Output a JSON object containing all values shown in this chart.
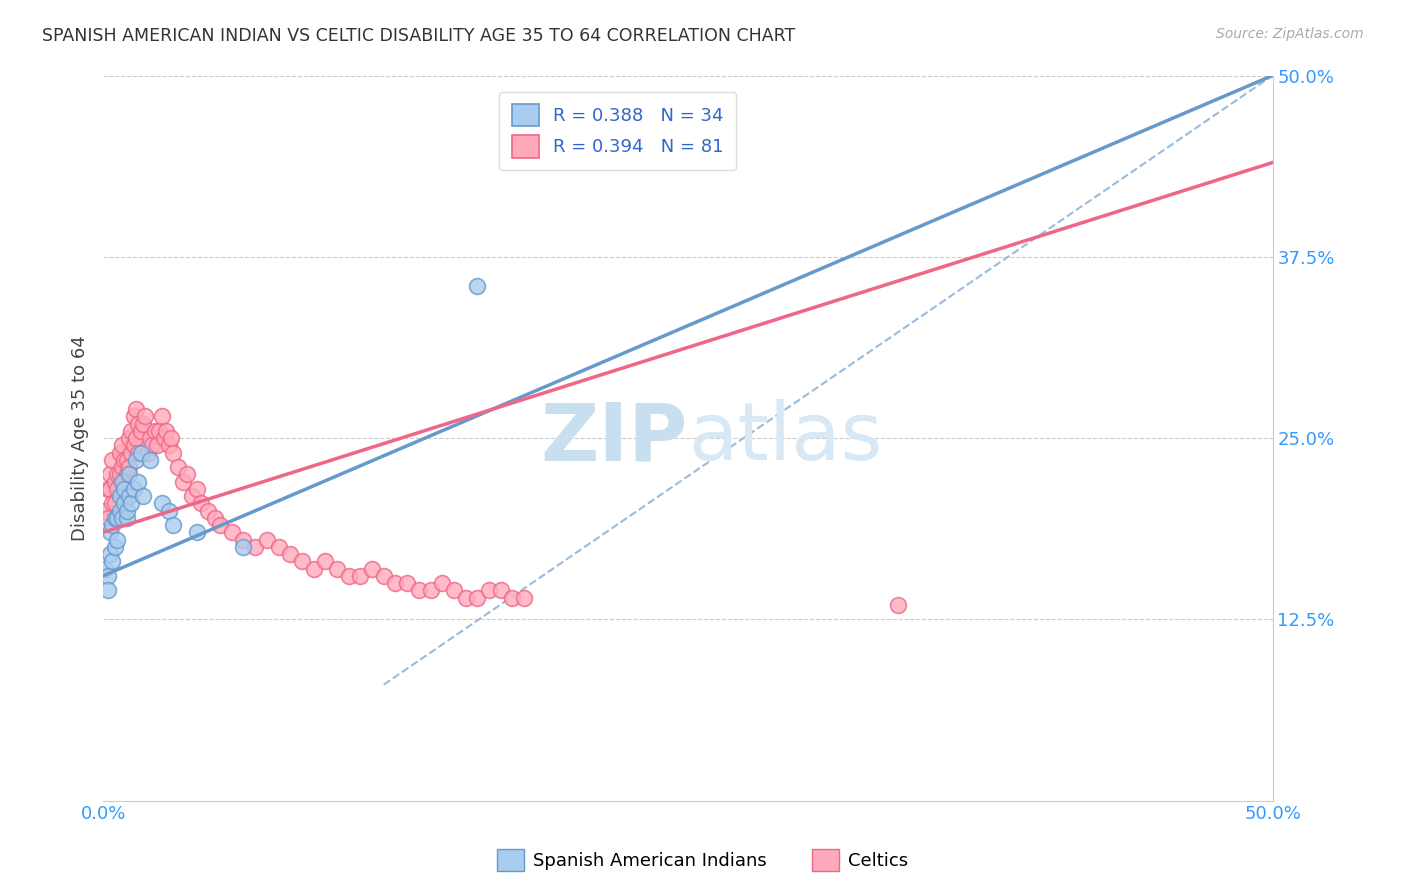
{
  "title": "SPANISH AMERICAN INDIAN VS CELTIC DISABILITY AGE 35 TO 64 CORRELATION CHART",
  "source": "Source: ZipAtlas.com",
  "ylabel": "Disability Age 35 to 64",
  "xlim": [
    0.0,
    0.5
  ],
  "ylim": [
    0.0,
    0.5
  ],
  "ytick_values": [
    0.125,
    0.25,
    0.375,
    0.5
  ],
  "grid_color": "#cccccc",
  "background_color": "#ffffff",
  "blue_color": "#6699cc",
  "blue_fill": "#aaccee",
  "pink_color": "#ee6688",
  "pink_fill": "#ffaabb",
  "legend_label1": "Spanish American Indians",
  "legend_label2": "Celtics",
  "watermark_zip": "ZIP",
  "watermark_atlas": "atlas",
  "blue_line_x0": 0.0,
  "blue_line_y0": 0.155,
  "blue_line_x1": 0.5,
  "blue_line_y1": 0.5,
  "pink_line_x0": 0.0,
  "pink_line_y0": 0.185,
  "pink_line_x1": 0.5,
  "pink_line_y1": 0.44,
  "dash_line_x0": 0.12,
  "dash_line_y0": 0.08,
  "dash_line_x1": 0.5,
  "dash_line_y1": 0.5,
  "blue_scatter_x": [
    0.001,
    0.002,
    0.002,
    0.003,
    0.003,
    0.004,
    0.004,
    0.005,
    0.005,
    0.006,
    0.006,
    0.007,
    0.007,
    0.008,
    0.008,
    0.009,
    0.009,
    0.01,
    0.01,
    0.011,
    0.011,
    0.012,
    0.013,
    0.014,
    0.015,
    0.016,
    0.017,
    0.02,
    0.025,
    0.028,
    0.03,
    0.04,
    0.06,
    0.16
  ],
  "blue_scatter_y": [
    0.16,
    0.155,
    0.145,
    0.17,
    0.185,
    0.19,
    0.165,
    0.195,
    0.175,
    0.195,
    0.18,
    0.2,
    0.21,
    0.195,
    0.22,
    0.205,
    0.215,
    0.195,
    0.2,
    0.21,
    0.225,
    0.205,
    0.215,
    0.235,
    0.22,
    0.24,
    0.21,
    0.235,
    0.205,
    0.2,
    0.19,
    0.185,
    0.175,
    0.355
  ],
  "pink_scatter_x": [
    0.001,
    0.002,
    0.002,
    0.003,
    0.003,
    0.004,
    0.004,
    0.005,
    0.005,
    0.006,
    0.006,
    0.007,
    0.007,
    0.008,
    0.008,
    0.009,
    0.009,
    0.01,
    0.01,
    0.011,
    0.011,
    0.012,
    0.012,
    0.013,
    0.013,
    0.014,
    0.014,
    0.015,
    0.015,
    0.016,
    0.017,
    0.018,
    0.019,
    0.02,
    0.021,
    0.022,
    0.023,
    0.024,
    0.025,
    0.026,
    0.027,
    0.028,
    0.029,
    0.03,
    0.032,
    0.034,
    0.036,
    0.038,
    0.04,
    0.042,
    0.045,
    0.048,
    0.05,
    0.055,
    0.06,
    0.065,
    0.07,
    0.075,
    0.08,
    0.085,
    0.09,
    0.095,
    0.1,
    0.105,
    0.11,
    0.115,
    0.12,
    0.125,
    0.13,
    0.135,
    0.14,
    0.145,
    0.15,
    0.155,
    0.16,
    0.165,
    0.17,
    0.175,
    0.18,
    0.34
  ],
  "pink_scatter_y": [
    0.2,
    0.215,
    0.195,
    0.215,
    0.225,
    0.205,
    0.235,
    0.22,
    0.205,
    0.225,
    0.215,
    0.24,
    0.225,
    0.23,
    0.245,
    0.235,
    0.22,
    0.235,
    0.225,
    0.23,
    0.25,
    0.24,
    0.255,
    0.245,
    0.265,
    0.25,
    0.27,
    0.26,
    0.24,
    0.255,
    0.26,
    0.265,
    0.24,
    0.25,
    0.245,
    0.255,
    0.245,
    0.255,
    0.265,
    0.25,
    0.255,
    0.245,
    0.25,
    0.24,
    0.23,
    0.22,
    0.225,
    0.21,
    0.215,
    0.205,
    0.2,
    0.195,
    0.19,
    0.185,
    0.18,
    0.175,
    0.18,
    0.175,
    0.17,
    0.165,
    0.16,
    0.165,
    0.16,
    0.155,
    0.155,
    0.16,
    0.155,
    0.15,
    0.15,
    0.145,
    0.145,
    0.15,
    0.145,
    0.14,
    0.14,
    0.145,
    0.145,
    0.14,
    0.14,
    0.135
  ]
}
